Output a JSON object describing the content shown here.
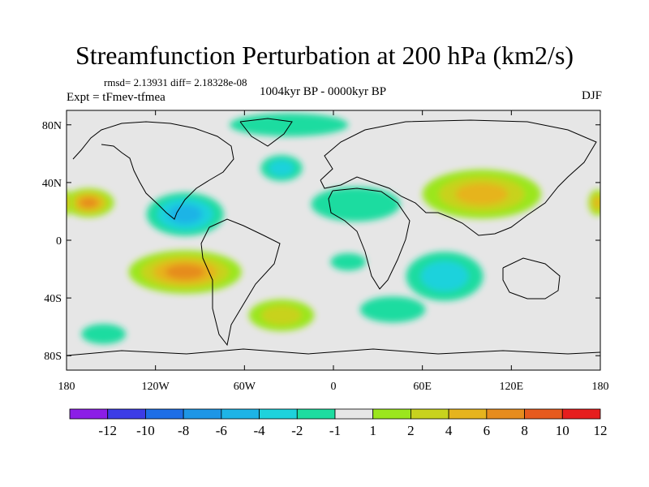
{
  "chart_data": {
    "type": "heatmap",
    "title": "Streamfunction Perturbation at 200 hPa (km2/s)",
    "stats_text": "rmsd= 2.13931 diff= 2.18328e-08",
    "experiment_text": "Expt = tFmev-tfmea",
    "period_text": "1004kyr BP - 0000kyr BP",
    "season_text": "DJF",
    "x_range": [
      -180,
      180
    ],
    "y_range": [
      -90,
      90
    ],
    "x_ticks": [
      {
        "value": -180,
        "label": "180"
      },
      {
        "value": -120,
        "label": "120W"
      },
      {
        "value": -60,
        "label": "60W"
      },
      {
        "value": 0,
        "label": "0"
      },
      {
        "value": 60,
        "label": "60E"
      },
      {
        "value": 120,
        "label": "120E"
      },
      {
        "value": 180,
        "label": "180"
      }
    ],
    "y_ticks": [
      {
        "value": 80,
        "label": "80N"
      },
      {
        "value": 40,
        "label": "40N"
      },
      {
        "value": 0,
        "label": "0"
      },
      {
        "value": -40,
        "label": "40S"
      },
      {
        "value": -80,
        "label": "80S"
      }
    ],
    "levels": [
      -12,
      -10,
      -8,
      -6,
      -4,
      -2,
      -1,
      1,
      2,
      4,
      6,
      8,
      10,
      12
    ],
    "colorbar_labels": [
      "-12",
      "-10",
      "-8",
      "-6",
      "-4",
      "-2",
      "-1",
      "1",
      "2",
      "4",
      "6",
      "8",
      "10",
      "12"
    ],
    "colors": [
      "#8c1ee6",
      "#3c3ce6",
      "#1e6ee6",
      "#1e96e6",
      "#1eb4e6",
      "#1ed2dc",
      "#1edca0",
      "#e6e6e6",
      "#9be61e",
      "#c8d21e",
      "#e6b41e",
      "#e68c1e",
      "#e65a1e",
      "#e61e1e"
    ],
    "features": [
      {
        "name": "north-pacific-high",
        "lon": -165,
        "lat": 26,
        "rx": 17,
        "ry": 10,
        "value": 7.5
      },
      {
        "name": "west-pacific-east-high",
        "lon": 178,
        "lat": 26,
        "rx": 6,
        "ry": 9,
        "value": 6
      },
      {
        "name": "central-america-low",
        "lon": -100,
        "lat": 18,
        "rx": 26,
        "ry": 15,
        "value": -5.5
      },
      {
        "name": "north-atlantic-low",
        "lon": -35,
        "lat": 50,
        "rx": 14,
        "ry": 9,
        "value": -3.5
      },
      {
        "name": "arctic-low",
        "lon": -30,
        "lat": 80,
        "rx": 40,
        "ry": 8,
        "value": -1.5
      },
      {
        "name": "africa-low",
        "lon": 15,
        "lat": 25,
        "rx": 30,
        "ry": 12,
        "value": -2.5
      },
      {
        "name": "asia-high",
        "lon": 100,
        "lat": 32,
        "rx": 40,
        "ry": 17,
        "value": 6
      },
      {
        "name": "south-pacific-high",
        "lon": -100,
        "lat": -22,
        "rx": 38,
        "ry": 15,
        "value": 7
      },
      {
        "name": "indian-ocean-low",
        "lon": 75,
        "lat": -25,
        "rx": 26,
        "ry": 17,
        "value": -4
      },
      {
        "name": "south-atlantic-high",
        "lon": -35,
        "lat": -52,
        "rx": 22,
        "ry": 11,
        "value": 4.5
      },
      {
        "name": "southern-ocean-low",
        "lon": 40,
        "lat": -48,
        "rx": 22,
        "ry": 9,
        "value": -2.5
      },
      {
        "name": "south-pacific-low",
        "lon": -155,
        "lat": -65,
        "rx": 15,
        "ry": 7,
        "value": -2.5
      },
      {
        "name": "south-atlantic-low",
        "lon": 10,
        "lat": -15,
        "rx": 12,
        "ry": 6,
        "value": -2.5
      }
    ]
  }
}
